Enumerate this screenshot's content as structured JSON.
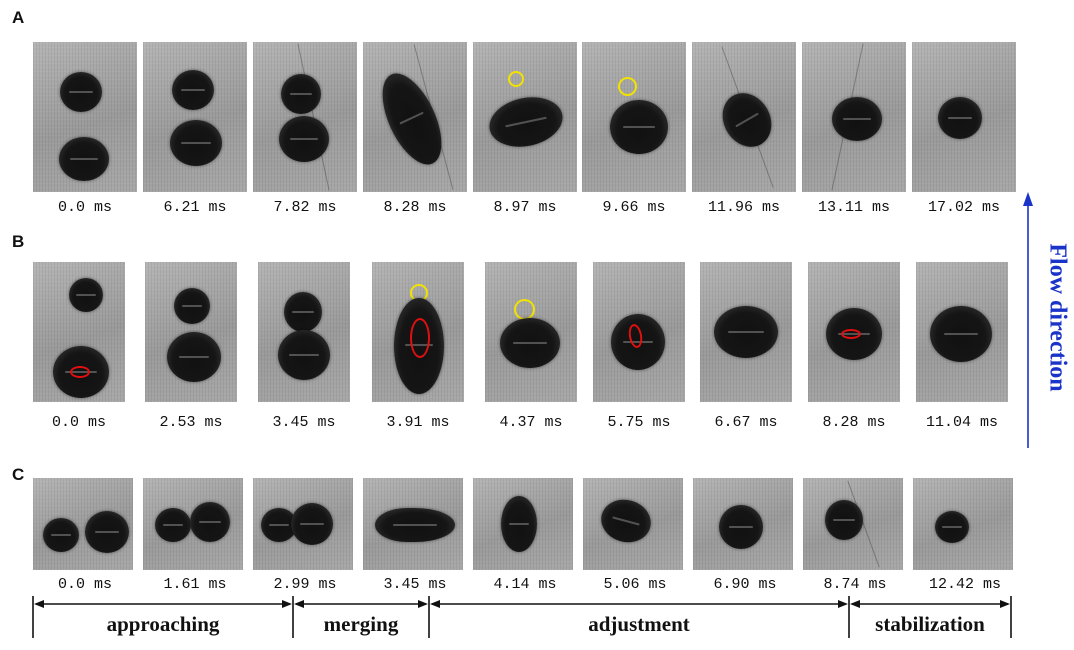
{
  "panels": [
    {
      "letter": "A",
      "times": [
        "0.0 ms",
        "6.21 ms",
        "7.82 ms",
        "8.28 ms",
        "8.97 ms",
        "9.66 ms",
        "11.96 ms",
        "13.11 ms",
        "17.02 ms"
      ]
    },
    {
      "letter": "B",
      "times": [
        "0.0 ms",
        "2.53 ms",
        "3.45 ms",
        "3.91 ms",
        "4.37 ms",
        "5.75 ms",
        "6.67 ms",
        "8.28 ms",
        "11.04 ms"
      ]
    },
    {
      "letter": "C",
      "times": [
        "0.0 ms",
        "1.61 ms",
        "2.99 ms",
        "3.45 ms",
        "4.14 ms",
        "5.06 ms",
        "6.90 ms",
        "8.74 ms",
        "12.42 ms"
      ]
    }
  ],
  "stages": [
    "approaching",
    "merging",
    "adjustment",
    "stabilization"
  ],
  "flow_label": "Flow direction",
  "colors": {
    "flow_arrow": "#1a33c8",
    "highlight_yellow": "#f2e200",
    "highlight_red": "#e01010"
  }
}
